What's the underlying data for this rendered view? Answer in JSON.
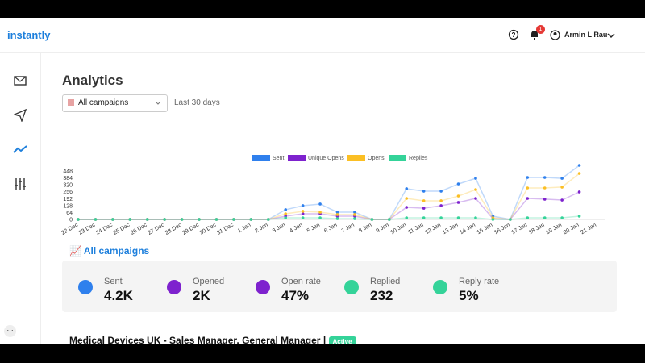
{
  "header": {
    "logo": "instantly",
    "notification_count": "1",
    "user": "Armin L Rau"
  },
  "page": {
    "title": "Analytics",
    "campaign_filter": "All campaigns",
    "range": "Last 30 days"
  },
  "chart_data": {
    "type": "line",
    "categories": [
      "22 Dec",
      "23 Dec",
      "24 Dec",
      "25 Dec",
      "26 Dec",
      "27 Dec",
      "28 Dec",
      "29 Dec",
      "30 Dec",
      "31 Dec",
      "1 Jan",
      "2 Jan",
      "3 Jan",
      "4 Jan",
      "5 Jan",
      "6 Jan",
      "7 Jan",
      "8 Jan",
      "9 Jan",
      "10 Jan",
      "11 Jan",
      "12 Jan",
      "13 Jan",
      "14 Jan",
      "15 Jan",
      "16 Jan",
      "17 Jan",
      "18 Jan",
      "19 Jan",
      "20 Jan",
      "21 Jan"
    ],
    "series": [
      {
        "name": "Sent",
        "color": "#2f80ed",
        "values": [
          0,
          0,
          0,
          0,
          0,
          0,
          0,
          0,
          0,
          0,
          0,
          0,
          90,
          127,
          142,
          67,
          67,
          0,
          0,
          284,
          261,
          261,
          328,
          380,
          30,
          0,
          388,
          388,
          380,
          500,
          null
        ]
      },
      {
        "name": "Unique Opens",
        "color": "#7e22ce",
        "values": [
          0,
          0,
          0,
          0,
          0,
          0,
          0,
          0,
          0,
          0,
          0,
          0,
          30,
          52,
          52,
          30,
          30,
          0,
          0,
          112,
          104,
          127,
          157,
          194,
          7,
          0,
          194,
          187,
          179,
          254,
          null
        ]
      },
      {
        "name": "Opens",
        "color": "#fbbf24",
        "values": [
          0,
          0,
          0,
          0,
          0,
          0,
          0,
          0,
          0,
          0,
          0,
          0,
          52,
          75,
          67,
          45,
          45,
          0,
          0,
          194,
          172,
          172,
          216,
          276,
          15,
          0,
          291,
          291,
          299,
          425,
          null
        ]
      },
      {
        "name": "Replies",
        "color": "#34d399",
        "values": [
          0,
          0,
          0,
          0,
          0,
          0,
          0,
          0,
          0,
          0,
          0,
          0,
          15,
          15,
          15,
          7,
          7,
          0,
          0,
          15,
          15,
          15,
          15,
          15,
          0,
          0,
          15,
          15,
          15,
          30,
          null
        ]
      }
    ],
    "ylim": [
      0,
      512
    ],
    "yticks": [
      0,
      64,
      128,
      192,
      256,
      320,
      384,
      448
    ]
  },
  "summary": {
    "title": "All campaigns",
    "stats": [
      {
        "label": "Sent",
        "value": "4.2K",
        "color": "#2f80ed"
      },
      {
        "label": "Opened",
        "value": "2K",
        "color": "#7e22ce"
      },
      {
        "label": "Open rate",
        "value": "47%",
        "color": "#7e22ce"
      },
      {
        "label": "Replied",
        "value": "232",
        "color": "#34d399"
      },
      {
        "label": "Reply rate",
        "value": "5%",
        "color": "#34d399"
      }
    ]
  },
  "campaign": {
    "name": "Medical Devices UK - Sales Manager, General Manager",
    "separator": "|",
    "status": "Active"
  }
}
